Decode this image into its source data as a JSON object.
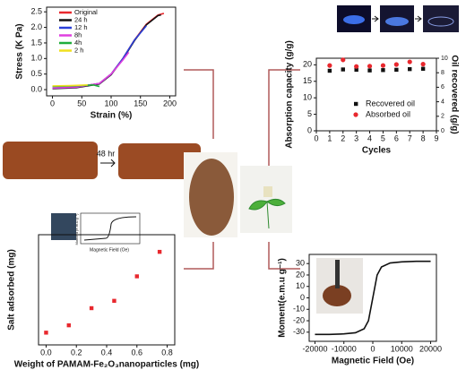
{
  "chart_data": [
    {
      "type": "line",
      "x_label": "Strain (%)",
      "y_label": "Stress (K Pa)",
      "xlim": [
        -10,
        210
      ],
      "ylim": [
        -0.2,
        2.65
      ],
      "xticks": [
        0,
        50,
        100,
        150,
        200
      ],
      "yticks": [
        {
          "value": 0,
          "label": "0.0"
        },
        0.5,
        {
          "value": 1,
          "label": "1.0"
        },
        1.5,
        {
          "value": 2,
          "label": "2.0"
        },
        2.5
      ],
      "series": [
        {
          "name": "Original",
          "color": "#e8282e",
          "x": [
            0,
            40,
            80,
            100,
            120,
            140,
            160,
            180,
            190
          ],
          "values": [
            0.05,
            0.08,
            0.2,
            0.5,
            1.0,
            1.6,
            2.1,
            2.4,
            2.45
          ]
        },
        {
          "name": "24 h",
          "color": "#111111",
          "x": [
            0,
            40,
            80,
            100,
            120,
            140,
            160,
            180,
            185
          ],
          "values": [
            0.03,
            0.06,
            0.18,
            0.48,
            0.98,
            1.58,
            2.08,
            2.38,
            2.4
          ]
        },
        {
          "name": "12 h",
          "color": "#2a3fd8",
          "x": [
            0,
            40,
            80,
            100,
            120,
            140,
            160
          ],
          "values": [
            0.05,
            0.08,
            0.2,
            0.5,
            1.0,
            1.6,
            2.05
          ]
        },
        {
          "name": "8h",
          "color": "#e040e0",
          "x": [
            0,
            40,
            80,
            100,
            120,
            130
          ],
          "values": [
            0.05,
            0.08,
            0.2,
            0.5,
            0.95,
            1.2
          ]
        },
        {
          "name": "4h",
          "color": "#1fae3c",
          "x": [
            0,
            40,
            70,
            80
          ],
          "values": [
            0.1,
            0.12,
            0.15,
            0.1
          ]
        },
        {
          "name": "2 h",
          "color": "#f0e020",
          "x": [
            0,
            30,
            60
          ],
          "values": [
            0.12,
            0.13,
            0.15
          ]
        }
      ],
      "legend": "upper-left"
    },
    {
      "type": "scatter",
      "x_label": "Cycles",
      "y_label": "Absorption capacity (g/g)",
      "y2_label": "Oil recovered (g/g)",
      "xlim": [
        0,
        9
      ],
      "ylim": [
        0,
        22
      ],
      "y2lim": [
        0,
        10
      ],
      "xticks": [
        0,
        1,
        2,
        3,
        4,
        5,
        6,
        7,
        8,
        9
      ],
      "yticks": [
        0,
        5,
        10,
        15,
        20
      ],
      "y2ticks": [
        0,
        2,
        4,
        6,
        8,
        10
      ],
      "x": [
        1,
        2,
        3,
        4,
        5,
        6,
        7,
        8
      ],
      "series": [
        {
          "name": "Recovered oil",
          "color": "#111111",
          "marker": "square",
          "values": [
            18.2,
            18.6,
            18.5,
            18.3,
            18.4,
            18.5,
            18.7,
            18.8
          ]
        },
        {
          "name": "Absorbed oil",
          "color": "#e8282e",
          "marker": "circle",
          "values": [
            19.8,
            21.5,
            19.5,
            19.6,
            19.8,
            20.1,
            20.9,
            20.2
          ]
        }
      ],
      "legend": "lower-center"
    },
    {
      "type": "scatter",
      "x_label": "Weight of PAMAM-Fe₂O₃nanoparticles (mg)",
      "y_label": "Salt adsorbed (mg)",
      "xlim": [
        -0.05,
        0.85
      ],
      "ylim": [
        -0.5,
        4
      ],
      "xticks": [
        {
          "value": 0,
          "label": "0.0"
        },
        0.2,
        0.4,
        0.6,
        0.8
      ],
      "x": [
        0,
        0.15,
        0.3,
        0.45,
        0.6,
        0.75
      ],
      "series": [
        {
          "color": "#e8282e",
          "marker": "square",
          "values": [
            0.0,
            0.3,
            1.0,
            1.3,
            2.3,
            3.3
          ]
        }
      ],
      "inset": {
        "x_label": "Magnetic Field (Oe)",
        "y_label": "Moment (e.m.u g⁻¹)"
      }
    },
    {
      "type": "line",
      "x_label": "Magnetic Field (Oe)",
      "y_label": "Moment(e.m.u g⁻¹)",
      "xlim": [
        -22000,
        22000
      ],
      "ylim": [
        -38,
        38
      ],
      "xticks": [
        -20000,
        -10000,
        0,
        10000,
        20000
      ],
      "yticks": [
        -30,
        -20,
        -10,
        0,
        10,
        20,
        30
      ],
      "series": [
        {
          "color": "#111111",
          "x": [
            -20000,
            -15000,
            -10000,
            -6000,
            -3000,
            -1500,
            0,
            1500,
            3000,
            6000,
            10000,
            15000,
            20000
          ],
          "values": [
            -32,
            -32,
            -31.5,
            -30.5,
            -27,
            -20,
            0,
            20,
            27,
            30.5,
            31.5,
            32,
            32
          ]
        }
      ]
    }
  ],
  "annotations": [
    "48 hr"
  ]
}
